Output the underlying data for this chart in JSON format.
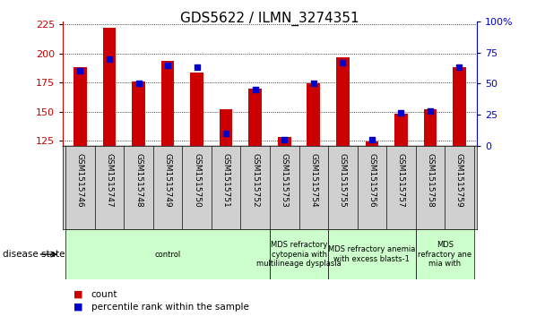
{
  "title": "GDS5622 / ILMN_3274351",
  "samples": [
    "GSM1515746",
    "GSM1515747",
    "GSM1515748",
    "GSM1515749",
    "GSM1515750",
    "GSM1515751",
    "GSM1515752",
    "GSM1515753",
    "GSM1515754",
    "GSM1515755",
    "GSM1515756",
    "GSM1515757",
    "GSM1515758",
    "GSM1515759"
  ],
  "counts": [
    188,
    222,
    176,
    194,
    184,
    152,
    170,
    128,
    174,
    197,
    124,
    148,
    152,
    188
  ],
  "percentile_ranks": [
    60,
    70,
    50,
    65,
    63,
    10,
    45,
    5,
    50,
    67,
    5,
    27,
    28,
    63
  ],
  "ymin": 120,
  "ylim_left": [
    120,
    228
  ],
  "ylim_right": [
    0,
    100
  ],
  "yticks_left": [
    125,
    150,
    175,
    200,
    225
  ],
  "yticks_right": [
    0,
    25,
    50,
    75,
    100
  ],
  "bar_color": "#cc0000",
  "dot_color": "#0000cc",
  "group_ranges": [
    [
      0,
      7,
      "control"
    ],
    [
      7,
      9,
      "MDS refractory\ncytopenia with\nmultilineage dysplasia"
    ],
    [
      9,
      12,
      "MDS refractory anemia\nwith excess blasts-1"
    ],
    [
      12,
      14,
      "MDS\nrefractory ane\nmia with"
    ]
  ],
  "group_color": "#ccffcc",
  "sample_bg": "#d0d0d0",
  "legend_count": "count",
  "legend_pct": "percentile rank within the sample",
  "disease_state_label": "disease state"
}
